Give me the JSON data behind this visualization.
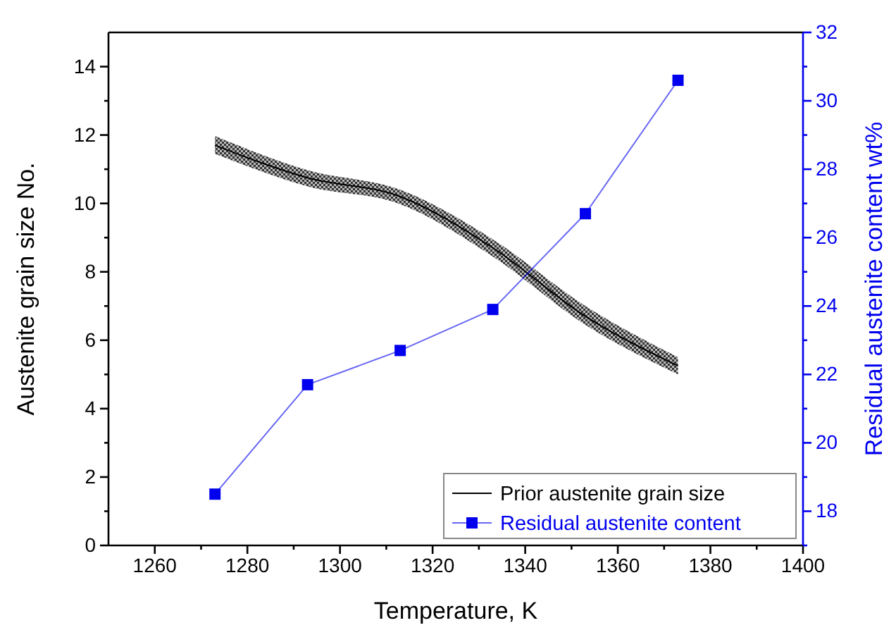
{
  "chart_data": {
    "type": "line",
    "xlabel": "Temperature, K",
    "ylabel": "Austenite grain size No.",
    "y2label": "Residual austenite content wt%",
    "x": [
      1273,
      1293,
      1313,
      1333,
      1353,
      1373
    ],
    "series": [
      {
        "name": "Prior austenite grain size",
        "color": "#000000",
        "values": [
          11.7,
          10.75,
          10.2,
          8.7,
          6.7,
          5.25
        ],
        "lower": [
          11.45,
          10.5,
          9.98,
          8.45,
          6.45,
          5.0
        ],
        "upper": [
          11.97,
          10.97,
          10.4,
          8.95,
          7.0,
          5.5
        ],
        "marker": "none"
      },
      {
        "name": "Residual austenite content",
        "color": "#0000ee",
        "axis": "y2",
        "values": [
          18.5,
          21.7,
          22.7,
          23.9,
          26.7,
          30.6
        ],
        "marker": "square"
      }
    ],
    "xlim": [
      1250,
      1400
    ],
    "xticks": [
      1260,
      {
        "value": 1270,
        "label": null
      },
      1280,
      {
        "value": 1290,
        "label": null
      },
      1300,
      {
        "value": 1310,
        "label": null
      },
      1320,
      {
        "value": 1330,
        "label": null
      },
      1340,
      {
        "value": 1350,
        "label": null
      },
      1360,
      {
        "value": 1370,
        "label": null
      },
      1380,
      {
        "value": 1390,
        "label": null
      },
      1400
    ],
    "ylim": [
      0,
      15
    ],
    "yticks": [
      0,
      {
        "value": 1,
        "label": null
      },
      2,
      {
        "value": 3,
        "label": null
      },
      4,
      {
        "value": 5,
        "label": null
      },
      6,
      {
        "value": 7,
        "label": null
      },
      8,
      {
        "value": 9,
        "label": null
      },
      10,
      {
        "value": 11,
        "label": null
      },
      12,
      {
        "value": 13,
        "label": null
      },
      14
    ],
    "y2lim": [
      17,
      32
    ],
    "y2ticks": [
      {
        "value": 17,
        "label": null
      },
      18,
      {
        "value": 19,
        "label": null
      },
      20,
      {
        "value": 21,
        "label": null
      },
      22,
      {
        "value": 23,
        "label": null
      },
      24,
      {
        "value": 25,
        "label": null
      },
      26,
      {
        "value": 27,
        "label": null
      },
      28,
      {
        "value": 29,
        "label": null
      },
      30,
      {
        "value": 31,
        "label": null
      },
      32
    ],
    "grid": false,
    "legend": "bottom right",
    "line_style": "solid"
  }
}
